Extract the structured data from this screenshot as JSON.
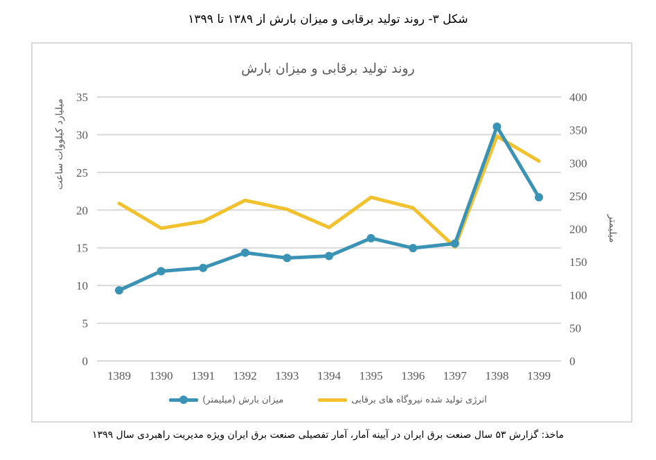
{
  "figure": {
    "caption": "شکل ۳- روند تولید برقابی  و میزان بارش از ۱۳۸۹ تا ۱۳۹۹",
    "source": "ماخذ: گزارش ۵۳ سال صنعت برق ایران در آیینه آمار، آمار تفصیلی صنعت برق ایران ویژه مدیریت راهبردی سال ۱۳۹۹"
  },
  "colors": {
    "rainfall": "#3a93b5",
    "energy": "#f2c12e",
    "grid": "#d9d9d9",
    "text": "#595959"
  },
  "chart_data": {
    "type": "line",
    "title": "روند تولید برقابی  و میزان بارش",
    "categories": [
      "1389",
      "1390",
      "1391",
      "1392",
      "1393",
      "1394",
      "1395",
      "1396",
      "1397",
      "1398",
      "1399"
    ],
    "series": [
      {
        "name": "انرژی تولید شده نیروگاه های برقابی",
        "axis": "left",
        "unit": "میلیارد کیلووات ساعت",
        "color": "#f2c12e",
        "markers": false,
        "values": [
          20.9,
          17.6,
          18.5,
          21.3,
          20.1,
          17.7,
          21.7,
          20.3,
          15.1,
          29.8,
          26.5
        ]
      },
      {
        "name": "میزان بارش (میلیمتر)",
        "axis": "right",
        "unit": "میلیمتر",
        "color": "#3a93b5",
        "markers": true,
        "values": [
          107,
          136,
          141,
          164,
          156,
          159,
          186,
          171,
          178,
          355,
          248
        ]
      }
    ],
    "ylabel": "میلیارد کیلووات ساعت",
    "ylabel_right": "میلیمتر",
    "xlabel": "",
    "ylim": [
      0,
      35
    ],
    "ylim_right": [
      0,
      400
    ],
    "yticks": [
      0,
      5,
      10,
      15,
      20,
      25,
      30,
      35
    ],
    "yticks_right": [
      0,
      50,
      100,
      150,
      200,
      250,
      300,
      350,
      400
    ],
    "grid": true,
    "legend_position": "bottom"
  }
}
